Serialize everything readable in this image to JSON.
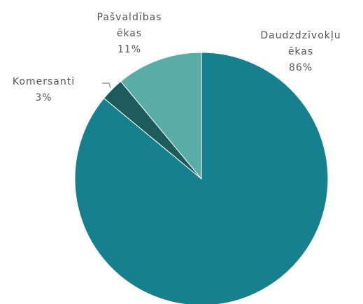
{
  "chart_data": {
    "type": "pie",
    "categories": [
      "Daudzdzīvokļu ēkas",
      "Komersanti",
      "Pašvaldības ēkas"
    ],
    "values": [
      86,
      3,
      11
    ],
    "value_labels": [
      "86%",
      "3%",
      "11%"
    ],
    "colors": [
      "#17808e",
      "#1e5b5c",
      "#5aaca6"
    ]
  }
}
